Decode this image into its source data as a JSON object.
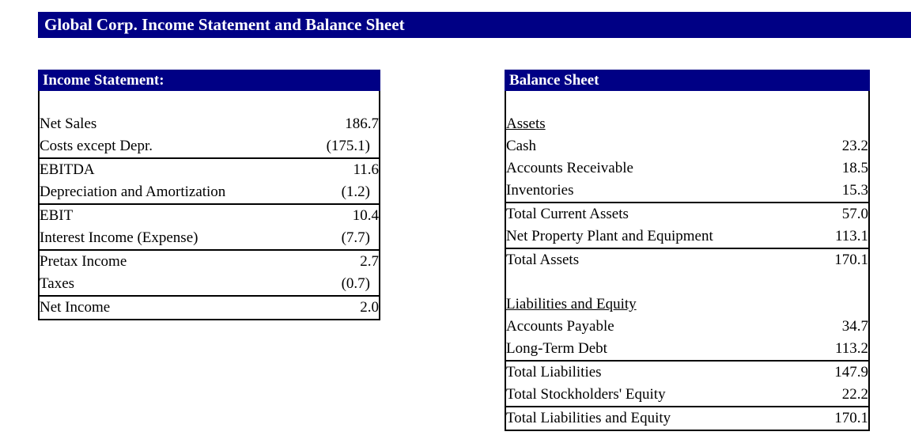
{
  "title_bar": {
    "text": "Global Corp. Income Statement and Balance Sheet"
  },
  "colors": {
    "accent_navy": "#000085",
    "border_black": "#000000",
    "header_text": "#ffffff",
    "body_text": "#000000",
    "background": "#ffffff"
  },
  "income_statement": {
    "header": "Income Statement:",
    "rows": [
      {
        "label": "",
        "value": ""
      },
      {
        "label": "Net Sales",
        "value": "186.7"
      },
      {
        "label": "Costs except Depr.",
        "value": "(175.1)",
        "divider": true
      },
      {
        "label": "EBITDA",
        "value": "11.6"
      },
      {
        "label": "Depreciation and Amortization",
        "value": "(1.2)",
        "divider": true
      },
      {
        "label": "EBIT",
        "value": "10.4"
      },
      {
        "label": "Interest Income (Expense)",
        "value": "(7.7)",
        "divider": true
      },
      {
        "label": "Pretax Income",
        "value": "2.7"
      },
      {
        "label": "Taxes",
        "value": "(0.7)",
        "divider": true
      },
      {
        "label": "Net Income",
        "value": "2.0"
      }
    ]
  },
  "balance_sheet": {
    "header": "Balance Sheet",
    "rows": [
      {
        "label": "",
        "value": ""
      },
      {
        "label": "Assets",
        "value": "",
        "underline": true
      },
      {
        "label": "Cash",
        "value": "23.2"
      },
      {
        "label": "Accounts Receivable",
        "value": "18.5"
      },
      {
        "label": "Inventories",
        "value": "15.3",
        "divider": true
      },
      {
        "label": "Total Current Assets",
        "value": "57.0"
      },
      {
        "label": "Net Property Plant and Equipment",
        "value": "113.1",
        "divider": true
      },
      {
        "label": "Total Assets",
        "value": "170.1"
      },
      {
        "label": "",
        "value": ""
      },
      {
        "label": "Liabilities and Equity",
        "value": "",
        "underline": true
      },
      {
        "label": "Accounts Payable",
        "value": "34.7"
      },
      {
        "label": "Long-Term Debt",
        "value": "113.2",
        "divider": true
      },
      {
        "label": "Total Liabilities",
        "value": "147.9"
      },
      {
        "label": "Total Stockholders' Equity",
        "value": "22.2",
        "divider": true
      },
      {
        "label": "Total Liabilities and Equity",
        "value": "170.1"
      }
    ]
  }
}
